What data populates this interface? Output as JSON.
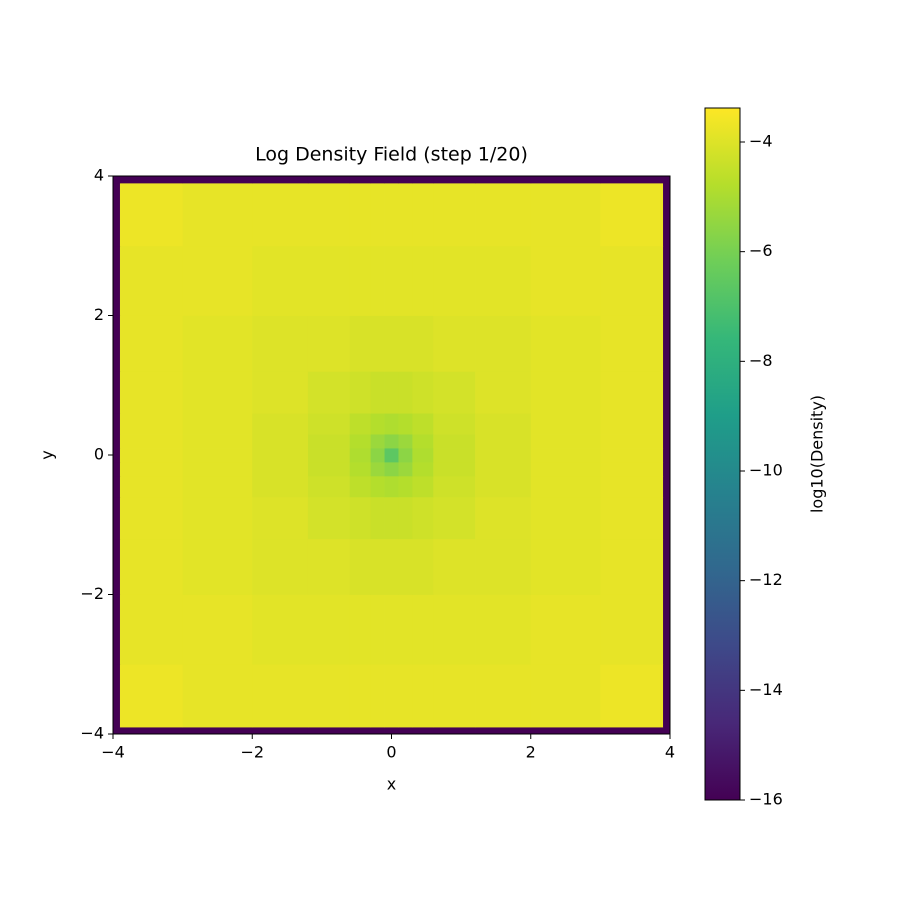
{
  "chart_data": {
    "type": "heatmap",
    "title": "Log Density Field (step 1/20)",
    "x_label": "x",
    "y_label": "y",
    "colorbar_label": "log10(Density)",
    "colormap": "viridis",
    "xbins": [
      -4,
      -3.9,
      -3,
      -2,
      -1.2,
      -0.6,
      -0.3,
      -0.1,
      0.1,
      0.3,
      0.6,
      1.2,
      2,
      3,
      3.9,
      4
    ],
    "ybins": [
      -4,
      -3.9,
      -3,
      -2,
      -1.2,
      -0.6,
      -0.3,
      -0.1,
      0.1,
      0.3,
      0.6,
      1.2,
      2,
      3,
      3.9,
      4
    ],
    "z": [
      [
        -16,
        -16,
        -16,
        -16,
        -16,
        -16,
        -16,
        -16,
        -16,
        -16,
        -16,
        -16,
        -16,
        -16,
        -16
      ],
      [
        -16,
        -3.7,
        -3.8,
        -3.8,
        -3.8,
        -3.8,
        -3.8,
        -3.8,
        -3.8,
        -3.8,
        -3.8,
        -3.8,
        -3.8,
        -3.7,
        -16
      ],
      [
        -16,
        -3.8,
        -3.8,
        -3.9,
        -3.9,
        -3.9,
        -3.9,
        -3.9,
        -3.9,
        -3.9,
        -3.9,
        -3.9,
        -3.8,
        -3.8,
        -16
      ],
      [
        -16,
        -3.8,
        -3.9,
        -4.0,
        -4.0,
        -4.1,
        -4.1,
        -4.1,
        -4.1,
        -4.1,
        -4.0,
        -4.0,
        -3.9,
        -3.8,
        -16
      ],
      [
        -16,
        -3.8,
        -3.9,
        -4.0,
        -4.2,
        -4.3,
        -4.4,
        -4.4,
        -4.4,
        -4.3,
        -4.2,
        -4.0,
        -3.9,
        -3.8,
        -16
      ],
      [
        -16,
        -3.8,
        -3.9,
        -4.1,
        -4.3,
        -4.6,
        -4.8,
        -4.9,
        -4.8,
        -4.6,
        -4.3,
        -4.1,
        -3.9,
        -3.8,
        -16
      ],
      [
        -16,
        -3.8,
        -3.9,
        -4.1,
        -4.4,
        -4.8,
        -5.3,
        -5.6,
        -5.3,
        -4.8,
        -4.4,
        -4.1,
        -3.9,
        -3.8,
        -16
      ],
      [
        -16,
        -3.8,
        -3.9,
        -4.1,
        -4.4,
        -4.9,
        -5.6,
        -6.6,
        -5.6,
        -4.9,
        -4.4,
        -4.1,
        -3.9,
        -3.8,
        -16
      ],
      [
        -16,
        -3.8,
        -3.9,
        -4.1,
        -4.4,
        -4.8,
        -5.3,
        -5.6,
        -5.3,
        -4.8,
        -4.4,
        -4.1,
        -3.9,
        -3.8,
        -16
      ],
      [
        -16,
        -3.8,
        -3.9,
        -4.1,
        -4.3,
        -4.6,
        -4.8,
        -4.9,
        -4.8,
        -4.6,
        -4.3,
        -4.1,
        -3.9,
        -3.8,
        -16
      ],
      [
        -16,
        -3.8,
        -3.9,
        -4.0,
        -4.2,
        -4.3,
        -4.4,
        -4.4,
        -4.4,
        -4.3,
        -4.2,
        -4.0,
        -3.9,
        -3.8,
        -16
      ],
      [
        -16,
        -3.8,
        -3.9,
        -4.0,
        -4.0,
        -4.1,
        -4.1,
        -4.1,
        -4.1,
        -4.1,
        -4.0,
        -4.0,
        -3.9,
        -3.8,
        -16
      ],
      [
        -16,
        -3.8,
        -3.8,
        -3.9,
        -3.9,
        -3.9,
        -3.9,
        -3.9,
        -3.9,
        -3.9,
        -3.9,
        -3.9,
        -3.8,
        -3.8,
        -16
      ],
      [
        -16,
        -3.7,
        -3.8,
        -3.8,
        -3.8,
        -3.8,
        -3.8,
        -3.8,
        -3.8,
        -3.8,
        -3.8,
        -3.8,
        -3.8,
        -3.7,
        -16
      ],
      [
        -16,
        -16,
        -16,
        -16,
        -16,
        -16,
        -16,
        -16,
        -16,
        -16,
        -16,
        -16,
        -16,
        -16,
        -16
      ]
    ],
    "xlim": [
      -4,
      4
    ],
    "ylim": [
      -4,
      4
    ],
    "xticks": [
      {
        "value": -4,
        "label": "−4"
      },
      {
        "value": -2,
        "label": "−2"
      },
      0,
      2,
      4
    ],
    "yticks": [
      {
        "value": -4,
        "label": "−4"
      },
      {
        "value": -2,
        "label": "−2"
      },
      0,
      2,
      4
    ],
    "clim": [
      -16,
      -3.38
    ],
    "cticks": [
      {
        "value": -4,
        "label": "−4"
      },
      {
        "value": -6,
        "label": "−6"
      },
      {
        "value": -8,
        "label": "−8"
      },
      {
        "value": -10,
        "label": "−10"
      },
      {
        "value": -12,
        "label": "−12"
      },
      {
        "value": -14,
        "label": "−14"
      },
      {
        "value": -16,
        "label": "−16"
      }
    ]
  }
}
